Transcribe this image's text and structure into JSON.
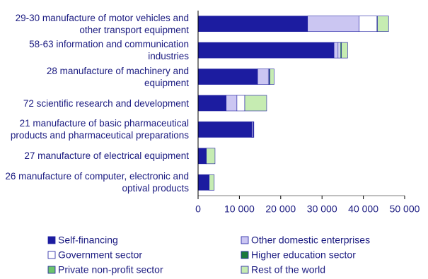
{
  "chart_data": {
    "type": "bar",
    "orientation": "horizontal",
    "stacked": true,
    "categories": [
      "29-30 manufacture of motor vehicles and other transport equipment",
      "58-63 information and communication industries",
      "28 manufacture of machinery and equipment",
      "72 scientific research and development",
      "21 manufacture of basic pharmaceutical products and pharmaceutical preparations",
      "27 manufacture of electrical equipment",
      "26 manufacture of computer, electronic and optival products"
    ],
    "series": [
      {
        "name": "Self-financing",
        "color": "#1c1ca0",
        "values": [
          26500,
          32900,
          14400,
          6800,
          13000,
          1900,
          2600
        ]
      },
      {
        "name": "Other domestic enterprises",
        "color": "#cbc6f2",
        "values": [
          12500,
          1000,
          2600,
          2600,
          200,
          100,
          100
        ]
      },
      {
        "name": "Government sector",
        "color": "#ffffff",
        "values": [
          4300,
          500,
          200,
          1900,
          200,
          0,
          0
        ]
      },
      {
        "name": "Higher education sector",
        "color": "#1b7a3c",
        "values": [
          0,
          0,
          0,
          0,
          0,
          0,
          0
        ]
      },
      {
        "name": "Private non-profit sector",
        "color": "#6cc46c",
        "values": [
          100,
          300,
          200,
          0,
          0,
          0,
          0
        ]
      },
      {
        "name": "Rest of the world",
        "color": "#c6ecb2",
        "values": [
          2700,
          1500,
          1000,
          5300,
          100,
          2100,
          1200
        ]
      }
    ],
    "xlim": [
      0,
      50000
    ],
    "xticks": [
      0,
      {
        "value": 10000,
        "label": "10 000"
      },
      {
        "value": 20000,
        "label": "20 000"
      },
      {
        "value": 30000,
        "label": "30 000"
      },
      {
        "value": 40000,
        "label": "40 000"
      },
      {
        "value": 50000,
        "label": "50 000"
      }
    ],
    "legend": "bottom"
  }
}
